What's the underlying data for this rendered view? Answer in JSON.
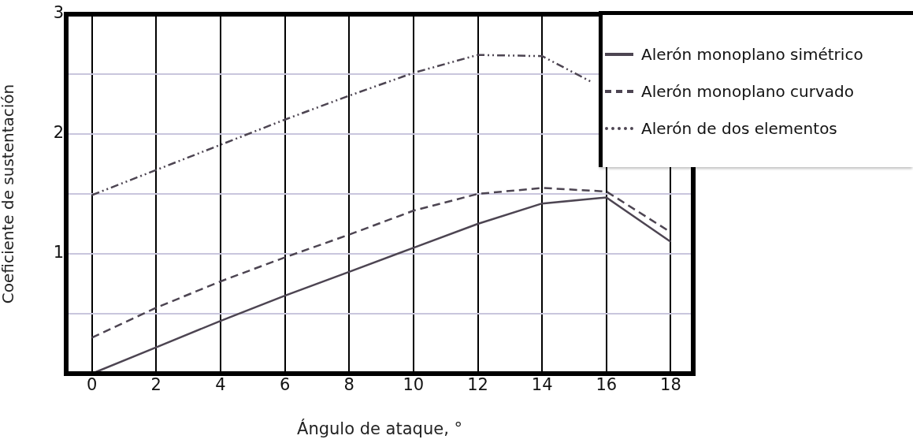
{
  "chart_data": {
    "type": "line",
    "xlabel": "Ángulo de ataque, °",
    "ylabel": "Coeficiente de sustentación",
    "x": [
      0,
      2,
      4,
      6,
      8,
      10,
      12,
      14,
      16,
      18
    ],
    "series": [
      {
        "name": "Alerón monoplano simétrico",
        "color": "#4d4552",
        "line_style": "solid",
        "values": [
          0,
          0.22,
          0.44,
          0.65,
          0.85,
          1.05,
          1.25,
          1.42,
          1.47,
          1.1
        ]
      },
      {
        "name": "Alerón monoplano curvado",
        "color": "#4d4552",
        "line_style": "dashed",
        "values": [
          0.3,
          0.55,
          0.77,
          0.97,
          1.16,
          1.36,
          1.5,
          1.55,
          1.52,
          1.18
        ]
      },
      {
        "name": "Alerón de dos elementos",
        "color": "#4d4552",
        "line_style": "dotted",
        "x": [
          0,
          2,
          4,
          6,
          8,
          10,
          12,
          14,
          15.5
        ],
        "values": [
          1.49,
          1.7,
          1.91,
          2.12,
          2.32,
          2.51,
          2.66,
          2.65,
          2.44
        ]
      }
    ],
    "xlim": [
      -0.8,
      18.7
    ],
    "xticks": [
      0,
      2,
      4,
      6,
      8,
      10,
      12,
      14,
      16,
      18
    ],
    "ylim": [
      0,
      3
    ],
    "yticks": [
      {
        "value": 0,
        "label": null
      },
      {
        "value": 0.5,
        "label": null
      },
      1,
      {
        "value": 1.5,
        "label": null
      },
      2,
      {
        "value": 2.5,
        "label": null
      },
      3
    ],
    "grid": true,
    "legend": "top right",
    "marker": "none"
  }
}
